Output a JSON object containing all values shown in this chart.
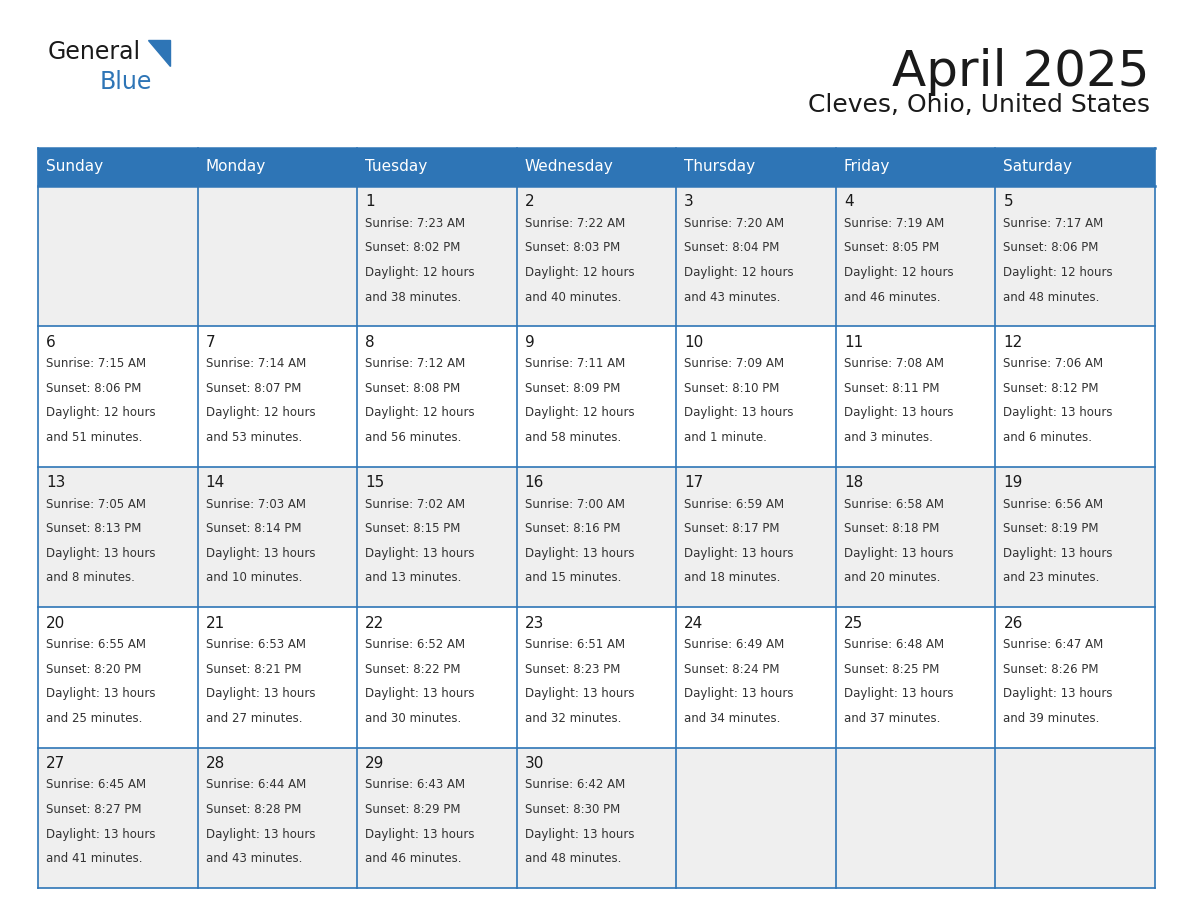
{
  "title": "April 2025",
  "subtitle": "Cleves, Ohio, United States",
  "header_bg_color": "#2E75B6",
  "header_text_color": "#FFFFFF",
  "cell_bg_color": "#FFFFFF",
  "cell_alt_bg_color": "#EFEFEF",
  "border_color": "#2E75B6",
  "day_names": [
    "Sunday",
    "Monday",
    "Tuesday",
    "Wednesday",
    "Thursday",
    "Friday",
    "Saturday"
  ],
  "title_color": "#1a1a1a",
  "subtitle_color": "#1a1a1a",
  "cell_text_color": "#333333",
  "day_num_color": "#1a1a1a",
  "logo_text_color": "#1a1a1a",
  "logo_blue_color": "#2E75B6",
  "calendar": [
    [
      {
        "day": "",
        "sunrise": "",
        "sunset": "",
        "daylight": ""
      },
      {
        "day": "",
        "sunrise": "",
        "sunset": "",
        "daylight": ""
      },
      {
        "day": "1",
        "sunrise": "7:23 AM",
        "sunset": "8:02 PM",
        "daylight": "12 hours and 38 minutes."
      },
      {
        "day": "2",
        "sunrise": "7:22 AM",
        "sunset": "8:03 PM",
        "daylight": "12 hours and 40 minutes."
      },
      {
        "day": "3",
        "sunrise": "7:20 AM",
        "sunset": "8:04 PM",
        "daylight": "12 hours and 43 minutes."
      },
      {
        "day": "4",
        "sunrise": "7:19 AM",
        "sunset": "8:05 PM",
        "daylight": "12 hours and 46 minutes."
      },
      {
        "day": "5",
        "sunrise": "7:17 AM",
        "sunset": "8:06 PM",
        "daylight": "12 hours and 48 minutes."
      }
    ],
    [
      {
        "day": "6",
        "sunrise": "7:15 AM",
        "sunset": "8:06 PM",
        "daylight": "12 hours and 51 minutes."
      },
      {
        "day": "7",
        "sunrise": "7:14 AM",
        "sunset": "8:07 PM",
        "daylight": "12 hours and 53 minutes."
      },
      {
        "day": "8",
        "sunrise": "7:12 AM",
        "sunset": "8:08 PM",
        "daylight": "12 hours and 56 minutes."
      },
      {
        "day": "9",
        "sunrise": "7:11 AM",
        "sunset": "8:09 PM",
        "daylight": "12 hours and 58 minutes."
      },
      {
        "day": "10",
        "sunrise": "7:09 AM",
        "sunset": "8:10 PM",
        "daylight": "13 hours and 1 minute."
      },
      {
        "day": "11",
        "sunrise": "7:08 AM",
        "sunset": "8:11 PM",
        "daylight": "13 hours and 3 minutes."
      },
      {
        "day": "12",
        "sunrise": "7:06 AM",
        "sunset": "8:12 PM",
        "daylight": "13 hours and 6 minutes."
      }
    ],
    [
      {
        "day": "13",
        "sunrise": "7:05 AM",
        "sunset": "8:13 PM",
        "daylight": "13 hours and 8 minutes."
      },
      {
        "day": "14",
        "sunrise": "7:03 AM",
        "sunset": "8:14 PM",
        "daylight": "13 hours and 10 minutes."
      },
      {
        "day": "15",
        "sunrise": "7:02 AM",
        "sunset": "8:15 PM",
        "daylight": "13 hours and 13 minutes."
      },
      {
        "day": "16",
        "sunrise": "7:00 AM",
        "sunset": "8:16 PM",
        "daylight": "13 hours and 15 minutes."
      },
      {
        "day": "17",
        "sunrise": "6:59 AM",
        "sunset": "8:17 PM",
        "daylight": "13 hours and 18 minutes."
      },
      {
        "day": "18",
        "sunrise": "6:58 AM",
        "sunset": "8:18 PM",
        "daylight": "13 hours and 20 minutes."
      },
      {
        "day": "19",
        "sunrise": "6:56 AM",
        "sunset": "8:19 PM",
        "daylight": "13 hours and 23 minutes."
      }
    ],
    [
      {
        "day": "20",
        "sunrise": "6:55 AM",
        "sunset": "8:20 PM",
        "daylight": "13 hours and 25 minutes."
      },
      {
        "day": "21",
        "sunrise": "6:53 AM",
        "sunset": "8:21 PM",
        "daylight": "13 hours and 27 minutes."
      },
      {
        "day": "22",
        "sunrise": "6:52 AM",
        "sunset": "8:22 PM",
        "daylight": "13 hours and 30 minutes."
      },
      {
        "day": "23",
        "sunrise": "6:51 AM",
        "sunset": "8:23 PM",
        "daylight": "13 hours and 32 minutes."
      },
      {
        "day": "24",
        "sunrise": "6:49 AM",
        "sunset": "8:24 PM",
        "daylight": "13 hours and 34 minutes."
      },
      {
        "day": "25",
        "sunrise": "6:48 AM",
        "sunset": "8:25 PM",
        "daylight": "13 hours and 37 minutes."
      },
      {
        "day": "26",
        "sunrise": "6:47 AM",
        "sunset": "8:26 PM",
        "daylight": "13 hours and 39 minutes."
      }
    ],
    [
      {
        "day": "27",
        "sunrise": "6:45 AM",
        "sunset": "8:27 PM",
        "daylight": "13 hours and 41 minutes."
      },
      {
        "day": "28",
        "sunrise": "6:44 AM",
        "sunset": "8:28 PM",
        "daylight": "13 hours and 43 minutes."
      },
      {
        "day": "29",
        "sunrise": "6:43 AM",
        "sunset": "8:29 PM",
        "daylight": "13 hours and 46 minutes."
      },
      {
        "day": "30",
        "sunrise": "6:42 AM",
        "sunset": "8:30 PM",
        "daylight": "13 hours and 48 minutes."
      },
      {
        "day": "",
        "sunrise": "",
        "sunset": "",
        "daylight": ""
      },
      {
        "day": "",
        "sunrise": "",
        "sunset": "",
        "daylight": ""
      },
      {
        "day": "",
        "sunrise": "",
        "sunset": "",
        "daylight": ""
      }
    ]
  ]
}
